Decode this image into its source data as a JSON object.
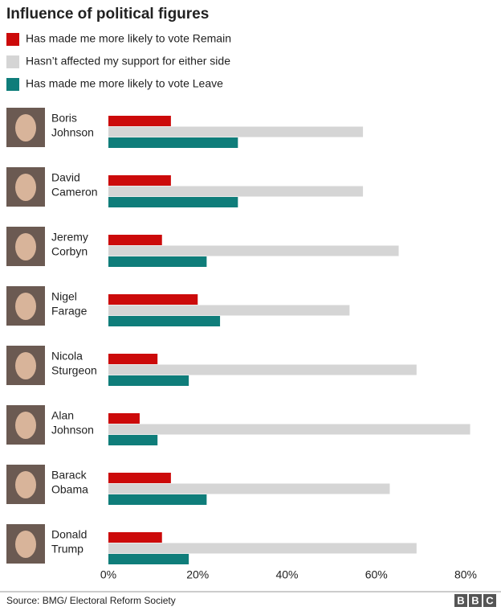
{
  "chart_data": {
    "type": "hbar",
    "title": "Influence of political figures",
    "categories": [
      [
        "Boris",
        "Johnson"
      ],
      [
        "David",
        "Cameron"
      ],
      [
        "Jeremy",
        "Corbyn"
      ],
      [
        "Nigel",
        "Farage"
      ],
      [
        "Nicola",
        "Sturgeon"
      ],
      [
        "Alan",
        "Johnson"
      ],
      [
        "Barack",
        "Obama"
      ],
      [
        "Donald",
        "Trump"
      ]
    ],
    "series": [
      {
        "name": "Has made me more likely to vote Remain",
        "color": "#cc0a0a",
        "values": [
          14,
          14,
          12,
          20,
          11,
          7,
          14,
          12
        ]
      },
      {
        "name": "Hasn’t affected my support for either side",
        "color": "#d5d5d5",
        "values": [
          57,
          57,
          65,
          54,
          69,
          81,
          63,
          69
        ]
      },
      {
        "name": "Has made me more likely to vote Leave",
        "color": "#0f7d7a",
        "values": [
          29,
          29,
          22,
          25,
          18,
          11,
          22,
          18
        ]
      }
    ],
    "xlim": [
      0,
      80
    ],
    "xticks": [
      {
        "value": 0,
        "label": "0%"
      },
      {
        "value": 20,
        "label": "20%"
      },
      {
        "value": 40,
        "label": "40%"
      },
      {
        "value": 60,
        "label": "60%"
      },
      {
        "value": 80,
        "label": "80%"
      }
    ],
    "grid": false,
    "source": "Source: BMG/ Electoral Reform Society",
    "logo": [
      "B",
      "B",
      "C"
    ]
  }
}
